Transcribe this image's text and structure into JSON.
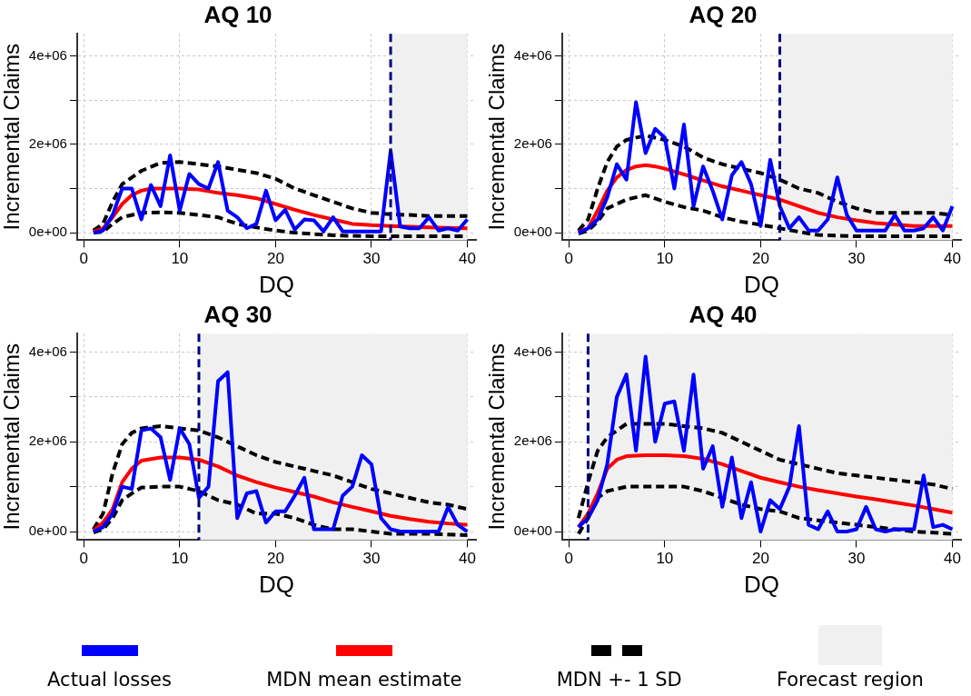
{
  "chart_data": [
    {
      "type": "line",
      "title": "AQ 10",
      "xlabel": "DQ",
      "ylabel": "Incremental Claims",
      "xlim": [
        -0.7,
        40.9
      ],
      "ylim": [
        -170000,
        4500000
      ],
      "xticks": [
        0,
        10,
        20,
        30,
        40
      ],
      "yticks": [
        {
          "value": 0,
          "label": "0e+00"
        },
        {
          "value": 1000000,
          "label": null
        },
        {
          "value": 2000000,
          "label": "2e+06"
        },
        {
          "value": 3000000,
          "label": null
        },
        {
          "value": 4000000,
          "label": "4e+06"
        }
      ],
      "grid": true,
      "marker": "none",
      "legend": "bottom",
      "bands": [
        {
          "axis": "x",
          "from": 32,
          "to": 40,
          "label": "Forecast region",
          "color": "#f0f0f0"
        }
      ],
      "ref_lines": [
        {
          "axis": "x",
          "value": 32,
          "color": "#000080",
          "line_style": "dashed"
        }
      ],
      "series": [
        {
          "name": "Actual losses",
          "color": "#0000ff",
          "line_style": "solid",
          "x": [
            1,
            2,
            3,
            4,
            5,
            6,
            7,
            8,
            9,
            10,
            11,
            12,
            13,
            14,
            15,
            16,
            17,
            18,
            19,
            20,
            21,
            22,
            23,
            24,
            25,
            26,
            27,
            28,
            29,
            30,
            31,
            32,
            33,
            34,
            35,
            36,
            37,
            38,
            39,
            40
          ],
          "values": [
            0,
            50000,
            400000,
            1000000,
            1000000,
            300000,
            1080000,
            600000,
            1750000,
            500000,
            1330000,
            1100000,
            1000000,
            1600000,
            500000,
            350000,
            100000,
            200000,
            950000,
            280000,
            520000,
            70000,
            300000,
            280000,
            30000,
            350000,
            30000,
            30000,
            30000,
            30000,
            30000,
            1850000,
            140000,
            100000,
            100000,
            350000,
            50000,
            100000,
            50000,
            300000
          ]
        },
        {
          "name": "MDN mean estimate",
          "color": "#ff0000",
          "line_style": "solid",
          "x": [
            1,
            2,
            3,
            4,
            5,
            6,
            7,
            8,
            10,
            12,
            14,
            16,
            18,
            20,
            22,
            24,
            26,
            28,
            30,
            32,
            36,
            40
          ],
          "values": [
            20000,
            100000,
            350000,
            650000,
            850000,
            950000,
            1000000,
            1000000,
            1000000,
            980000,
            900000,
            850000,
            780000,
            650000,
            520000,
            400000,
            300000,
            200000,
            170000,
            150000,
            120000,
            100000
          ]
        },
        {
          "name": "MDN +- 1 SD",
          "color": "#000000",
          "line_style": "dashed",
          "x": [
            1,
            2,
            3,
            4,
            6,
            8,
            10,
            14,
            18,
            20,
            22,
            24,
            26,
            28,
            30,
            32,
            36,
            40
          ],
          "values": [
            50000,
            200000,
            700000,
            1100000,
            1400000,
            1580000,
            1600000,
            1500000,
            1350000,
            1220000,
            1000000,
            850000,
            700000,
            550000,
            450000,
            420000,
            380000,
            380000
          ]
        },
        {
          "color": "#000000",
          "line_style": "dashed",
          "x": [
            1,
            2,
            3,
            4,
            6,
            8,
            10,
            14,
            16,
            18,
            20,
            22,
            24,
            26,
            30,
            40
          ],
          "values": [
            0,
            20000,
            200000,
            350000,
            450000,
            460000,
            450000,
            350000,
            200000,
            120000,
            50000,
            0,
            -30000,
            -60000,
            -80000,
            -80000
          ]
        }
      ]
    },
    {
      "type": "line",
      "title": "AQ 20",
      "xlabel": "DQ",
      "ylabel": "Incremental Claims",
      "xlim": [
        -0.7,
        40.9
      ],
      "ylim": [
        -170000,
        4500000
      ],
      "xticks": [
        0,
        10,
        20,
        30,
        40
      ],
      "yticks": [
        {
          "value": 0,
          "label": "0e+00"
        },
        {
          "value": 1000000,
          "label": null
        },
        {
          "value": 2000000,
          "label": "2e+06"
        },
        {
          "value": 3000000,
          "label": null
        },
        {
          "value": 4000000,
          "label": "4e+06"
        }
      ],
      "grid": true,
      "marker": "none",
      "bands": [
        {
          "axis": "x",
          "from": 22,
          "to": 40,
          "color": "#f0f0f0"
        }
      ],
      "ref_lines": [
        {
          "axis": "x",
          "value": 22,
          "color": "#000080",
          "line_style": "dashed"
        }
      ],
      "series": [
        {
          "color": "#0000ff",
          "line_style": "solid",
          "x": [
            1,
            2,
            3,
            4,
            5,
            6,
            7,
            8,
            9,
            10,
            11,
            12,
            13,
            14,
            15,
            16,
            17,
            18,
            19,
            20,
            21,
            22,
            23,
            24,
            25,
            26,
            27,
            28,
            29,
            30,
            31,
            32,
            33,
            34,
            35,
            36,
            37,
            38,
            39,
            40
          ],
          "values": [
            0,
            100000,
            300000,
            800000,
            1550000,
            1200000,
            2950000,
            1800000,
            2350000,
            2150000,
            1000000,
            2450000,
            600000,
            1500000,
            950000,
            300000,
            1300000,
            1600000,
            1100000,
            150000,
            1650000,
            600000,
            100000,
            350000,
            50000,
            50000,
            300000,
            1250000,
            400000,
            50000,
            50000,
            50000,
            50000,
            400000,
            50000,
            50000,
            100000,
            350000,
            50000,
            600000
          ]
        },
        {
          "color": "#ff0000",
          "line_style": "solid",
          "x": [
            1,
            2,
            3,
            4,
            5,
            6,
            7,
            8,
            9,
            10,
            12,
            14,
            16,
            18,
            20,
            22,
            24,
            26,
            28,
            30,
            32,
            36,
            40
          ],
          "values": [
            20000,
            100000,
            500000,
            950000,
            1250000,
            1420000,
            1500000,
            1530000,
            1500000,
            1450000,
            1320000,
            1180000,
            1050000,
            950000,
            850000,
            750000,
            600000,
            450000,
            350000,
            280000,
            220000,
            150000,
            150000
          ]
        },
        {
          "color": "#000000",
          "line_style": "dashed",
          "x": [
            1,
            2,
            3,
            4,
            5,
            6,
            8,
            10,
            12,
            14,
            16,
            18,
            20,
            22,
            24,
            26,
            28,
            30,
            32,
            34,
            36,
            38,
            40
          ],
          "values": [
            50000,
            300000,
            1000000,
            1600000,
            1950000,
            2100000,
            2200000,
            2100000,
            1950000,
            1700000,
            1550000,
            1450000,
            1350000,
            1200000,
            1000000,
            900000,
            700000,
            550000,
            450000,
            450000,
            450000,
            450000,
            400000
          ]
        },
        {
          "color": "#000000",
          "line_style": "dashed",
          "x": [
            1,
            2,
            3,
            4,
            6,
            8,
            10,
            12,
            14,
            16,
            18,
            20,
            22,
            24,
            26,
            30,
            40
          ],
          "values": [
            -20000,
            50000,
            250000,
            550000,
            750000,
            850000,
            700000,
            580000,
            500000,
            350000,
            250000,
            180000,
            100000,
            20000,
            -50000,
            -80000,
            -80000
          ]
        }
      ]
    },
    {
      "type": "line",
      "title": "AQ 30",
      "xlabel": "DQ",
      "ylabel": "Incremental Claims",
      "xlim": [
        -0.7,
        40.9
      ],
      "ylim": [
        -190000,
        4410000
      ],
      "xticks": [
        0,
        10,
        20,
        30,
        40
      ],
      "yticks": [
        {
          "value": 0,
          "label": "0e+00"
        },
        {
          "value": 1000000,
          "label": null
        },
        {
          "value": 2000000,
          "label": "2e+06"
        },
        {
          "value": 3000000,
          "label": null
        },
        {
          "value": 4000000,
          "label": "4e+06"
        }
      ],
      "grid": true,
      "marker": "none",
      "bands": [
        {
          "axis": "x",
          "from": 12,
          "to": 40,
          "color": "#f0f0f0"
        }
      ],
      "ref_lines": [
        {
          "axis": "x",
          "value": 12,
          "color": "#000080",
          "line_style": "dashed"
        }
      ],
      "series": [
        {
          "color": "#0000ff",
          "line_style": "solid",
          "x": [
            1,
            2,
            3,
            4,
            5,
            6,
            7,
            8,
            9,
            10,
            11,
            12,
            13,
            14,
            15,
            16,
            17,
            18,
            19,
            20,
            21,
            22,
            23,
            24,
            25,
            26,
            27,
            28,
            29,
            30,
            31,
            32,
            33,
            34,
            35,
            36,
            37,
            38,
            39,
            40
          ],
          "values": [
            0,
            100000,
            400000,
            1000000,
            950000,
            2250000,
            2300000,
            2100000,
            1150000,
            2300000,
            1950000,
            750000,
            1000000,
            3350000,
            3550000,
            300000,
            850000,
            900000,
            200000,
            450000,
            450000,
            800000,
            1200000,
            50000,
            50000,
            50000,
            800000,
            1000000,
            1700000,
            1500000,
            300000,
            50000,
            0,
            0,
            0,
            0,
            0,
            550000,
            150000,
            0
          ]
        },
        {
          "color": "#ff0000",
          "line_style": "solid",
          "x": [
            1,
            2,
            3,
            4,
            5,
            6,
            8,
            10,
            12,
            14,
            16,
            18,
            20,
            22,
            24,
            26,
            28,
            30,
            32,
            34,
            36,
            38,
            40
          ],
          "values": [
            20000,
            200000,
            500000,
            1100000,
            1400000,
            1580000,
            1650000,
            1650000,
            1600000,
            1450000,
            1250000,
            1100000,
            980000,
            880000,
            780000,
            650000,
            550000,
            450000,
            350000,
            280000,
            220000,
            180000,
            150000
          ]
        },
        {
          "color": "#000000",
          "line_style": "dashed",
          "x": [
            1,
            2,
            3,
            4,
            5,
            6,
            8,
            10,
            12,
            14,
            16,
            18,
            20,
            22,
            24,
            26,
            28,
            30,
            32,
            34,
            36,
            38,
            40
          ],
          "values": [
            50000,
            400000,
            1300000,
            1950000,
            2200000,
            2300000,
            2350000,
            2300000,
            2250000,
            2100000,
            1900000,
            1700000,
            1550000,
            1450000,
            1350000,
            1250000,
            1100000,
            950000,
            850000,
            750000,
            650000,
            600000,
            500000
          ]
        },
        {
          "color": "#000000",
          "line_style": "dashed",
          "x": [
            1,
            2,
            3,
            4,
            5,
            6,
            8,
            10,
            12,
            14,
            16,
            18,
            20,
            22,
            24,
            26,
            28,
            30,
            32,
            36,
            40
          ],
          "values": [
            -20000,
            50000,
            300000,
            700000,
            850000,
            980000,
            1000000,
            1000000,
            900000,
            700000,
            600000,
            400000,
            400000,
            300000,
            150000,
            50000,
            50000,
            0,
            -50000,
            -50000,
            -80000
          ]
        }
      ]
    },
    {
      "type": "line",
      "title": "AQ 40",
      "xlabel": "DQ",
      "ylabel": "Incremental Claims",
      "xlim": [
        -0.7,
        40.9
      ],
      "ylim": [
        -190000,
        4410000
      ],
      "xticks": [
        0,
        10,
        20,
        30,
        40
      ],
      "yticks": [
        {
          "value": 0,
          "label": "0e+00"
        },
        {
          "value": 1000000,
          "label": null
        },
        {
          "value": 2000000,
          "label": "2e+06"
        },
        {
          "value": 3000000,
          "label": null
        },
        {
          "value": 4000000,
          "label": "4e+06"
        }
      ],
      "grid": true,
      "marker": "none",
      "bands": [
        {
          "axis": "x",
          "from": 2,
          "to": 40,
          "color": "#f0f0f0"
        }
      ],
      "ref_lines": [
        {
          "axis": "x",
          "value": 2,
          "color": "#000080",
          "line_style": "dashed"
        }
      ],
      "series": [
        {
          "color": "#0000ff",
          "line_style": "solid",
          "x": [
            1,
            2,
            3,
            4,
            5,
            6,
            7,
            8,
            9,
            10,
            11,
            12,
            13,
            14,
            15,
            16,
            17,
            18,
            19,
            20,
            21,
            22,
            23,
            24,
            25,
            26,
            27,
            28,
            29,
            30,
            31,
            32,
            33,
            34,
            35,
            36,
            37,
            38,
            39,
            40
          ],
          "values": [
            100000,
            300000,
            700000,
            1500000,
            3000000,
            3500000,
            1800000,
            3900000,
            2000000,
            2850000,
            2900000,
            1800000,
            3500000,
            1400000,
            1900000,
            550000,
            1650000,
            300000,
            1100000,
            0,
            700000,
            500000,
            1000000,
            2350000,
            150000,
            50000,
            450000,
            0,
            0,
            50000,
            550000,
            50000,
            0,
            50000,
            50000,
            50000,
            1250000,
            100000,
            150000,
            50000
          ]
        },
        {
          "color": "#ff0000",
          "line_style": "solid",
          "x": [
            1,
            2,
            3,
            4,
            5,
            6,
            8,
            10,
            12,
            14,
            16,
            18,
            20,
            22,
            24,
            26,
            28,
            30,
            32,
            34,
            36,
            38,
            40
          ],
          "values": [
            100000,
            400000,
            850000,
            1400000,
            1600000,
            1680000,
            1700000,
            1700000,
            1680000,
            1620000,
            1500000,
            1350000,
            1200000,
            1100000,
            1000000,
            920000,
            850000,
            780000,
            720000,
            650000,
            580000,
            500000,
            420000
          ]
        },
        {
          "color": "#000000",
          "line_style": "dashed",
          "x": [
            1,
            2,
            3,
            4,
            6,
            8,
            10,
            12,
            14,
            16,
            18,
            20,
            22,
            24,
            26,
            28,
            30,
            32,
            34,
            36,
            38,
            40
          ],
          "values": [
            300000,
            1100000,
            1800000,
            2100000,
            2400000,
            2400000,
            2400000,
            2350000,
            2300000,
            2200000,
            2000000,
            1800000,
            1600000,
            1500000,
            1400000,
            1300000,
            1250000,
            1200000,
            1150000,
            1100000,
            1050000,
            950000
          ]
        },
        {
          "color": "#000000",
          "line_style": "dashed",
          "x": [
            1,
            2,
            3,
            4,
            6,
            8,
            10,
            12,
            14,
            16,
            18,
            20,
            22,
            24,
            26,
            28,
            30,
            32,
            34,
            36,
            40
          ],
          "values": [
            -50000,
            300000,
            750000,
            900000,
            1000000,
            1000000,
            1000000,
            1000000,
            900000,
            750000,
            600000,
            500000,
            450000,
            300000,
            250000,
            200000,
            150000,
            100000,
            50000,
            0,
            -50000
          ]
        }
      ]
    }
  ]
}
